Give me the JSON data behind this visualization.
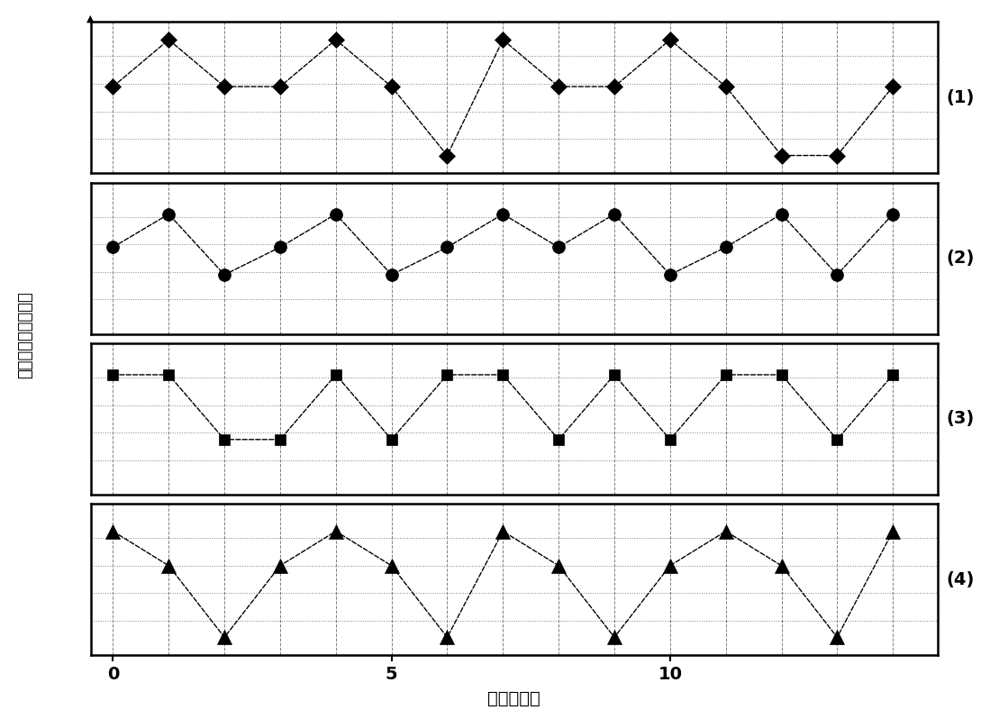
{
  "xlabel": "时间（帧）",
  "ylabel": "输入灰度（归一化）",
  "x_ticks": [
    0,
    5,
    10
  ],
  "subplot_labels": [
    "(1)",
    "(2)",
    "(3)",
    "(4)"
  ],
  "background_color": "#ffffff",
  "series": [
    {
      "marker": "D",
      "ms": 9,
      "label": "(1)",
      "y": [
        0.58,
        0.92,
        0.58,
        0.58,
        0.92,
        0.58,
        0.08,
        0.92,
        0.58,
        0.58,
        0.92,
        0.58,
        0.08,
        0.08,
        0.58
      ]
    },
    {
      "marker": "o",
      "ms": 10,
      "label": "(2)",
      "y": [
        0.58,
        0.82,
        0.38,
        0.58,
        0.82,
        0.38,
        0.58,
        0.82,
        0.58,
        0.82,
        0.38,
        0.58,
        0.82,
        0.38,
        0.82
      ]
    },
    {
      "marker": "s",
      "ms": 9,
      "label": "(3)",
      "y": [
        0.82,
        0.82,
        0.35,
        0.35,
        0.82,
        0.35,
        0.82,
        0.82,
        0.35,
        0.82,
        0.35,
        0.82,
        0.82,
        0.35,
        0.82
      ]
    },
    {
      "marker": "^",
      "ms": 11,
      "label": "(4)",
      "y": [
        0.85,
        0.6,
        0.08,
        0.6,
        0.85,
        0.6,
        0.08,
        0.85,
        0.6,
        0.08,
        0.6,
        0.85,
        0.6,
        0.08,
        0.85
      ]
    }
  ],
  "hgrid_levels": [
    0.2,
    0.4,
    0.6,
    0.8
  ],
  "vgrid_positions": [
    0,
    1,
    2,
    3,
    4,
    5,
    6,
    7,
    8,
    9,
    10,
    11,
    12,
    13,
    14
  ],
  "xlim": [
    -0.4,
    14.8
  ],
  "ylim": [
    -0.05,
    1.05
  ]
}
